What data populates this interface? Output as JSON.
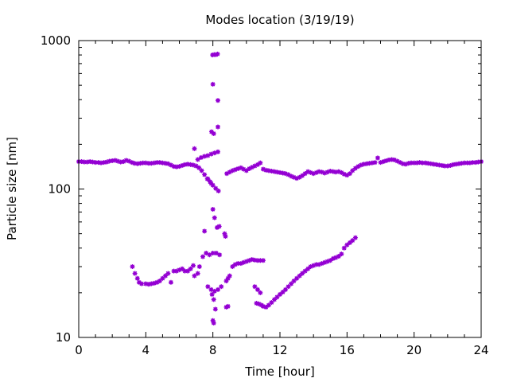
{
  "chart_data": {
    "type": "scatter",
    "title": "Modes location (3/19/19)",
    "xlabel": "Time [hour]",
    "ylabel": "Particle size [nm]",
    "xlim": [
      0,
      24
    ],
    "ylim": [
      10,
      1000
    ],
    "yscale": "log",
    "xticks": [
      0,
      4,
      8,
      12,
      16,
      20,
      24
    ],
    "xtick_labels": [
      "0",
      "4",
      "8",
      "12",
      "16",
      "20",
      "24"
    ],
    "yticks": [
      10,
      100,
      1000
    ],
    "ytick_labels": [
      "10",
      "100",
      "1000"
    ],
    "grid": false,
    "legend": "none",
    "marker_color": "#9400d3",
    "series": [
      {
        "points": [
          [
            0.0,
            153
          ],
          [
            0.17,
            153
          ],
          [
            0.33,
            152
          ],
          [
            0.5,
            152
          ],
          [
            0.67,
            153
          ],
          [
            0.83,
            152
          ],
          [
            1.0,
            151
          ],
          [
            1.17,
            151
          ],
          [
            1.33,
            150
          ],
          [
            1.5,
            151
          ],
          [
            1.67,
            152
          ],
          [
            1.83,
            154
          ],
          [
            2.0,
            155
          ],
          [
            2.17,
            156
          ],
          [
            2.33,
            154
          ],
          [
            2.5,
            152
          ],
          [
            2.67,
            153
          ],
          [
            2.83,
            156
          ],
          [
            3.0,
            154
          ],
          [
            3.17,
            151
          ],
          [
            3.33,
            149
          ],
          [
            3.5,
            148
          ],
          [
            3.67,
            149
          ],
          [
            3.83,
            150
          ],
          [
            4.0,
            150
          ],
          [
            4.17,
            149
          ],
          [
            4.33,
            149
          ],
          [
            4.5,
            150
          ],
          [
            4.67,
            151
          ],
          [
            4.83,
            151
          ],
          [
            5.0,
            150
          ],
          [
            5.17,
            149
          ],
          [
            5.33,
            148
          ],
          [
            5.5,
            145
          ],
          [
            5.67,
            142
          ],
          [
            5.83,
            141
          ],
          [
            6.0,
            142
          ],
          [
            6.17,
            144
          ],
          [
            6.33,
            146
          ],
          [
            6.5,
            147
          ],
          [
            6.67,
            146
          ],
          [
            6.83,
            145
          ],
          [
            7.0,
            143
          ],
          [
            7.17,
            139
          ],
          [
            7.33,
            133
          ],
          [
            7.5,
            125
          ],
          [
            7.67,
            117
          ],
          [
            7.83,
            112
          ],
          [
            8.0,
            106
          ],
          [
            8.17,
            101
          ],
          [
            8.33,
            97
          ],
          [
            8.83,
            127
          ],
          [
            9.0,
            130
          ],
          [
            9.17,
            133
          ],
          [
            9.33,
            135
          ],
          [
            9.5,
            137
          ],
          [
            9.67,
            139
          ],
          [
            9.83,
            136
          ],
          [
            10.0,
            133
          ],
          [
            10.17,
            137
          ],
          [
            10.33,
            140
          ],
          [
            10.5,
            143
          ],
          [
            10.67,
            146
          ],
          [
            10.83,
            150
          ],
          [
            11.0,
            136
          ],
          [
            11.17,
            134
          ],
          [
            11.33,
            133
          ],
          [
            11.5,
            132
          ],
          [
            11.67,
            131
          ],
          [
            11.83,
            130
          ],
          [
            12.0,
            129
          ],
          [
            12.17,
            128
          ],
          [
            12.33,
            127
          ],
          [
            12.5,
            125
          ],
          [
            12.67,
            122
          ],
          [
            12.83,
            120
          ],
          [
            13.0,
            118
          ],
          [
            13.17,
            120
          ],
          [
            13.33,
            123
          ],
          [
            13.5,
            127
          ],
          [
            13.67,
            131
          ],
          [
            13.83,
            129
          ],
          [
            14.0,
            127
          ],
          [
            14.17,
            129
          ],
          [
            14.33,
            131
          ],
          [
            14.5,
            130
          ],
          [
            14.67,
            128
          ],
          [
            14.83,
            130
          ],
          [
            15.0,
            132
          ],
          [
            15.17,
            131
          ],
          [
            15.33,
            130
          ],
          [
            15.5,
            131
          ],
          [
            15.67,
            129
          ],
          [
            15.83,
            126
          ],
          [
            16.0,
            124
          ],
          [
            16.17,
            127
          ],
          [
            16.33,
            133
          ],
          [
            16.5,
            138
          ],
          [
            16.67,
            142
          ],
          [
            16.83,
            145
          ],
          [
            17.0,
            147
          ],
          [
            17.17,
            148
          ],
          [
            17.33,
            149
          ],
          [
            17.5,
            150
          ],
          [
            17.67,
            151
          ],
          [
            17.83,
            162
          ],
          [
            18.0,
            151
          ],
          [
            18.17,
            153
          ],
          [
            18.33,
            155
          ],
          [
            18.5,
            157
          ],
          [
            18.67,
            158
          ],
          [
            18.83,
            157
          ],
          [
            19.0,
            154
          ],
          [
            19.17,
            151
          ],
          [
            19.33,
            148
          ],
          [
            19.5,
            147
          ],
          [
            19.67,
            149
          ],
          [
            19.83,
            150
          ],
          [
            20.0,
            150
          ],
          [
            20.17,
            150
          ],
          [
            20.33,
            151
          ],
          [
            20.5,
            150
          ],
          [
            20.67,
            150
          ],
          [
            20.83,
            149
          ],
          [
            21.0,
            148
          ],
          [
            21.17,
            147
          ],
          [
            21.33,
            146
          ],
          [
            21.5,
            145
          ],
          [
            21.67,
            144
          ],
          [
            21.83,
            143
          ],
          [
            22.0,
            143
          ],
          [
            22.17,
            144
          ],
          [
            22.33,
            146
          ],
          [
            22.5,
            147
          ],
          [
            22.67,
            148
          ],
          [
            22.83,
            149
          ],
          [
            23.0,
            150
          ],
          [
            23.17,
            150
          ],
          [
            23.33,
            150
          ],
          [
            23.5,
            151
          ],
          [
            23.67,
            151
          ],
          [
            23.83,
            152
          ],
          [
            24.0,
            153
          ],
          [
            6.9,
            187
          ],
          [
            7.1,
            158
          ],
          [
            7.3,
            163
          ],
          [
            7.5,
            166
          ],
          [
            7.7,
            168
          ],
          [
            7.9,
            172
          ],
          [
            8.1,
            175
          ],
          [
            8.3,
            178
          ],
          [
            7.92,
            243
          ],
          [
            8.05,
            236
          ],
          [
            8.3,
            262
          ],
          [
            7.98,
            800
          ],
          [
            8.08,
            805
          ],
          [
            8.18,
            803
          ],
          [
            8.28,
            812
          ],
          [
            8.0,
            508
          ],
          [
            8.3,
            395
          ],
          [
            7.7,
            117
          ],
          [
            7.9,
            109
          ],
          [
            8.0,
            73
          ],
          [
            8.1,
            64
          ],
          [
            8.25,
            55
          ],
          [
            8.38,
            56
          ],
          [
            8.7,
            50
          ],
          [
            8.75,
            48
          ],
          [
            3.2,
            30
          ],
          [
            3.35,
            27
          ],
          [
            3.5,
            25
          ],
          [
            3.6,
            23.5
          ],
          [
            3.75,
            23
          ],
          [
            4.0,
            23
          ],
          [
            4.17,
            22.8
          ],
          [
            4.33,
            23
          ],
          [
            4.5,
            23.2
          ],
          [
            4.67,
            23.5
          ],
          [
            4.83,
            24
          ],
          [
            5.0,
            25
          ],
          [
            5.17,
            26
          ],
          [
            5.33,
            27
          ],
          [
            5.5,
            23.5
          ],
          [
            5.67,
            28
          ],
          [
            5.83,
            28
          ],
          [
            6.0,
            28.5
          ],
          [
            6.17,
            29
          ],
          [
            6.33,
            28
          ],
          [
            6.5,
            28
          ],
          [
            6.67,
            29
          ],
          [
            6.83,
            30.5
          ],
          [
            6.9,
            26
          ],
          [
            7.1,
            27
          ],
          [
            7.2,
            30
          ],
          [
            7.4,
            35
          ],
          [
            7.6,
            37
          ],
          [
            7.8,
            36
          ],
          [
            8.0,
            37
          ],
          [
            8.2,
            37
          ],
          [
            8.4,
            36
          ],
          [
            7.5,
            52
          ],
          [
            8.8,
            24
          ],
          [
            8.9,
            25
          ],
          [
            9.0,
            26
          ],
          [
            9.17,
            30
          ],
          [
            9.33,
            31
          ],
          [
            9.5,
            31.5
          ],
          [
            9.67,
            31.5
          ],
          [
            9.83,
            32
          ],
          [
            10.0,
            32.5
          ],
          [
            10.17,
            33
          ],
          [
            10.33,
            33.5
          ],
          [
            10.5,
            33.2
          ],
          [
            10.67,
            33
          ],
          [
            10.83,
            33
          ],
          [
            11.0,
            33
          ],
          [
            10.5,
            22
          ],
          [
            10.67,
            21
          ],
          [
            10.83,
            20
          ],
          [
            7.7,
            22
          ],
          [
            7.9,
            21
          ],
          [
            8.1,
            20.5
          ],
          [
            8.3,
            21
          ],
          [
            8.5,
            22
          ],
          [
            10.6,
            17
          ],
          [
            10.75,
            16.8
          ],
          [
            10.9,
            16.5
          ],
          [
            11.0,
            16.2
          ],
          [
            11.17,
            16
          ],
          [
            11.33,
            16.5
          ],
          [
            11.5,
            17.2
          ],
          [
            11.67,
            18
          ],
          [
            11.83,
            18.7
          ],
          [
            12.0,
            19.5
          ],
          [
            12.17,
            20.2
          ],
          [
            12.33,
            21
          ],
          [
            12.5,
            22
          ],
          [
            12.67,
            23
          ],
          [
            12.83,
            24
          ],
          [
            13.0,
            25
          ],
          [
            13.17,
            26
          ],
          [
            13.33,
            27
          ],
          [
            13.5,
            28
          ],
          [
            13.67,
            29
          ],
          [
            13.83,
            30
          ],
          [
            14.0,
            30.5
          ],
          [
            14.17,
            31
          ],
          [
            14.33,
            31
          ],
          [
            14.5,
            31.5
          ],
          [
            14.67,
            32
          ],
          [
            14.83,
            32.5
          ],
          [
            15.0,
            33
          ],
          [
            15.17,
            34
          ],
          [
            15.33,
            34.5
          ],
          [
            15.5,
            35.2
          ],
          [
            15.67,
            36.5
          ],
          [
            15.83,
            40
          ],
          [
            16.0,
            42
          ],
          [
            16.17,
            43.5
          ],
          [
            16.33,
            45
          ],
          [
            16.5,
            47
          ],
          [
            7.95,
            19.5
          ],
          [
            8.05,
            18
          ],
          [
            8.15,
            15.5
          ],
          [
            8.0,
            13
          ],
          [
            8.05,
            12.5
          ],
          [
            8.8,
            16
          ],
          [
            8.9,
            16.2
          ]
        ]
      }
    ]
  }
}
